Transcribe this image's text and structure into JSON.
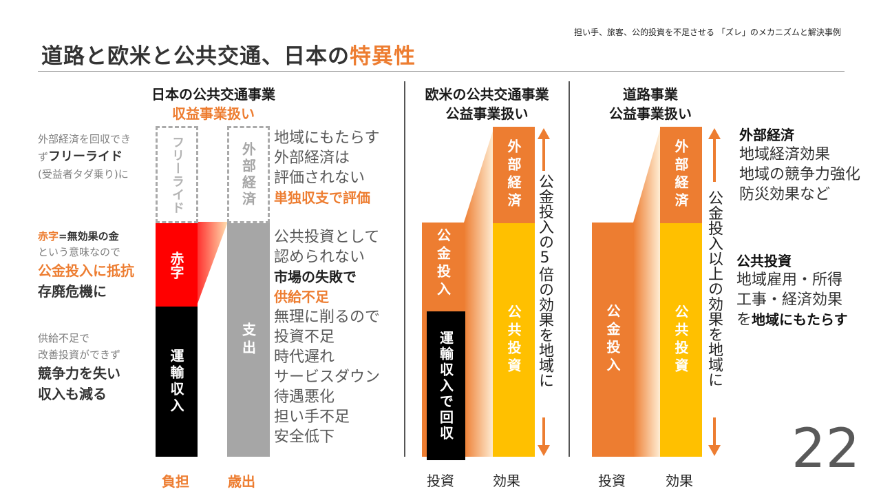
{
  "header": {
    "subtitle": "担い手、旅客、公的投資を不足させる 「ズレ」のメカニズムと解決事例",
    "title_main": "道路と欧米と公共交通、日本の",
    "title_highlight": "特異性"
  },
  "japan": {
    "head_line1": "日本の公共交通事業",
    "head_line2": "収益事業扱い",
    "left_top_line1": "外部経済を回収でき",
    "left_top_line2_prefix": "ず",
    "left_top_line2_bold": "フリーライド",
    "left_top_line3": "(受益者タダ乗り)に",
    "left_mid_line1_red": "赤字",
    "left_mid_line1_rest": "=無効果の金",
    "left_mid_line2": "という意味なので",
    "left_mid_line3": "公金投入に抵抗",
    "left_mid_line4": "存廃危機に",
    "left_bot_line1": "供給不足で",
    "left_bot_line2": "改善投資ができず",
    "left_bot_line3": "競争力を失い",
    "left_bot_line4": "収入も減る",
    "bar1_top": "フリーライド",
    "bar1_mid": "赤字",
    "bar1_bottom": "運輸収入",
    "bar2_top": "外部経済",
    "bar2_bottom": "支出",
    "label_left": "負担",
    "label_right": "歳出",
    "right_lines_top": [
      "地域にもたらす",
      "外部経済は",
      "評価されない"
    ],
    "right_top_bold": "単独収支で評価",
    "right_lines_mid": [
      "公共投資として",
      "認められない"
    ],
    "right_mid_bold1": "市場の失敗で",
    "right_mid_bold2": "供給不足",
    "right_lines_bot": [
      "無理に削るので",
      "投資不足",
      "時代遅れ",
      "サービスダウン",
      "待遇悪化",
      "担い手不足",
      "安全低下"
    ]
  },
  "western": {
    "head_line1": "欧米の公共交通事業",
    "head_line2": "公益事業扱い",
    "bar_invest": "公金投入",
    "bar_fare": "運輸収入で回収",
    "bar_external": "外部経済",
    "bar_public": "公共投資",
    "arrow_text": "公金投入の5倍の効果を地域に",
    "label_invest": "投資",
    "label_effect": "効果"
  },
  "road": {
    "head_line1": "道路事業",
    "head_line2": "公益事業扱い",
    "bar_invest": "公金投入",
    "bar_external": "外部経済",
    "bar_public": "公共投資",
    "arrow_text": "公金投入以上の効果を地域に",
    "label_invest": "投資",
    "label_effect": "効果",
    "ext_title": "外部経済",
    "ext_lines": [
      "地域経済効果",
      "地域の競争力強化",
      "防災効果など"
    ],
    "pub_title": "公共投資",
    "pub_lines": [
      "地域雇用・所得",
      "工事・経済効果"
    ],
    "pub_last_prefix": "を",
    "pub_last_bold": "地域にもたらす"
  },
  "page_number": "22",
  "colors": {
    "orange": "#ED7D31",
    "yellow": "#FFC000",
    "red": "#FF0000",
    "black": "#000000",
    "gray": "#A6A6A6"
  }
}
